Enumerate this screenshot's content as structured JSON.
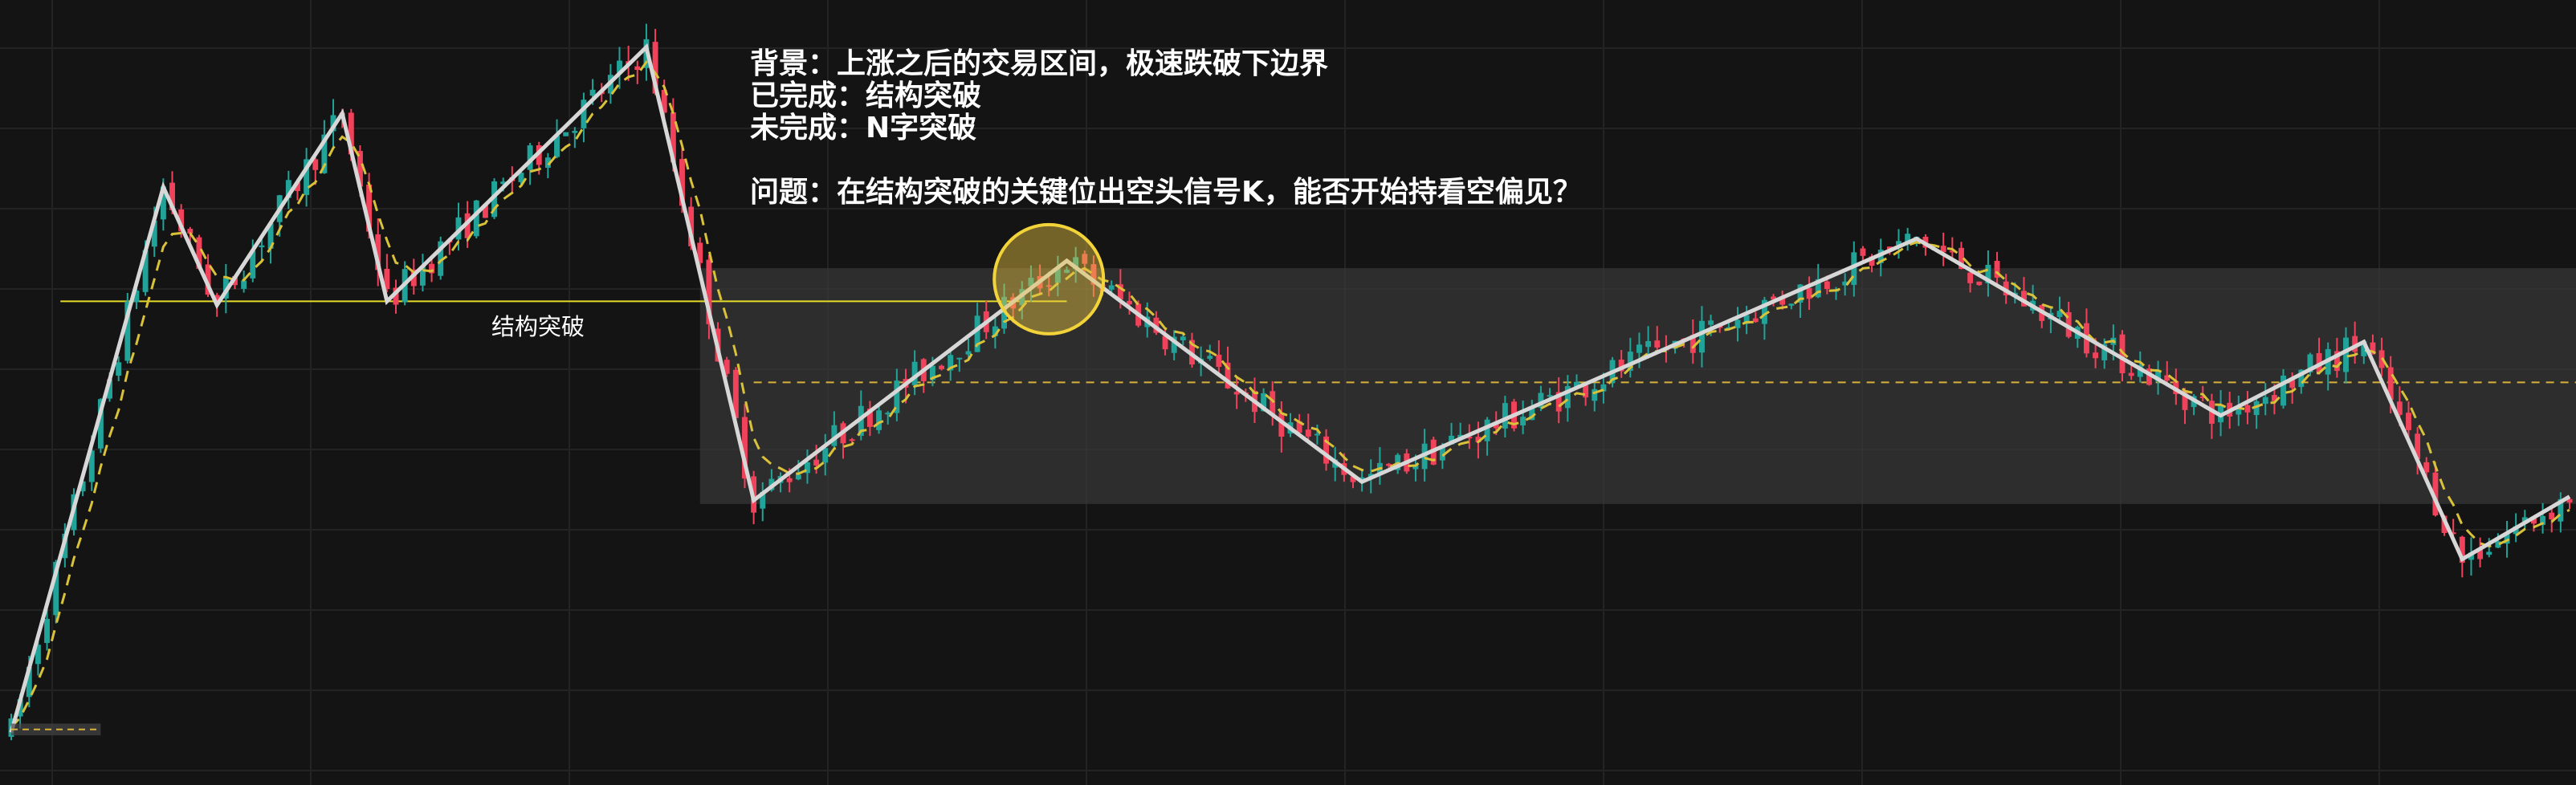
{
  "annotations": {
    "background": "背景：上涨之后的交易区间，极速跌破下边界",
    "done": "已完成：结构突破",
    "todo": "未完成：N字突破",
    "question": "问题：在结构突破的关键位出空头信号K，能否开始持看空偏见？"
  },
  "chart_data": {
    "type": "candlestick",
    "price_range": [
      0,
      100
    ],
    "structure_break_label": "结构突破",
    "structure_break_level": 61.5,
    "range_top": 66,
    "range_bottom": 34,
    "range_mid": 50.5,
    "swing_line": [
      {
        "t": 0,
        "p": 3
      },
      {
        "t": 17,
        "p": 77
      },
      {
        "t": 23,
        "p": 61
      },
      {
        "t": 37,
        "p": 87
      },
      {
        "t": 42,
        "p": 61.5
      },
      {
        "t": 71,
        "p": 96
      },
      {
        "t": 83,
        "p": 34.5
      },
      {
        "t": 118,
        "p": 67
      },
      {
        "t": 151,
        "p": 37
      },
      {
        "t": 213,
        "p": 70
      },
      {
        "t": 247,
        "p": 46
      },
      {
        "t": 263,
        "p": 56
      },
      {
        "t": 274,
        "p": 26.5
      },
      {
        "t": 286,
        "p": 35
      }
    ],
    "signal_circle": {
      "t": 116,
      "p": 64.5
    },
    "colors": {
      "up": "#22a39a",
      "down": "#f0425b",
      "swing": "#d7d7d7",
      "break_line": "#e6db28",
      "ema": "#d9c23a",
      "circle": "#f2d43a",
      "range": "#3c3c3c"
    }
  }
}
